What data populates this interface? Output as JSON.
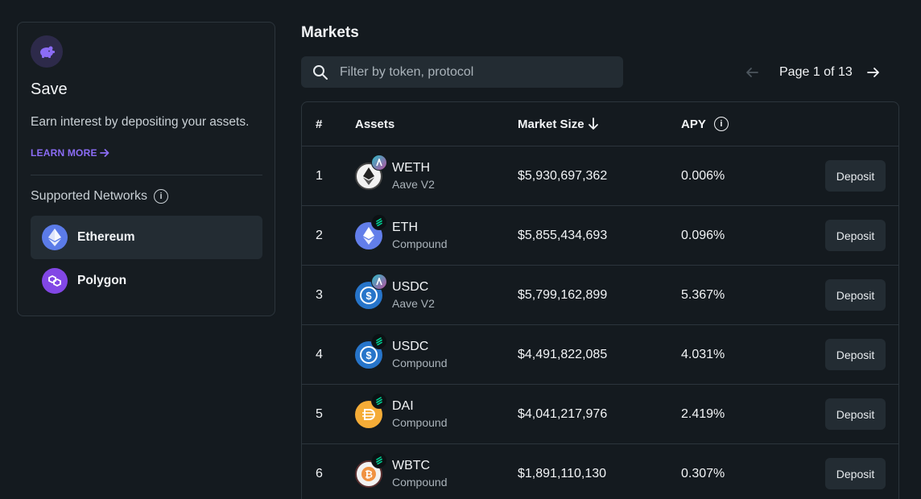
{
  "save": {
    "title": "Save",
    "description": "Earn interest by depositing your assets.",
    "learn_more": "LEARN MORE",
    "networks_label": "Supported Networks",
    "networks": [
      {
        "name": "Ethereum",
        "icon": "ethereum-icon",
        "active": true
      },
      {
        "name": "Polygon",
        "icon": "polygon-icon",
        "active": false
      }
    ]
  },
  "markets": {
    "title": "Markets",
    "search_placeholder": "Filter by token, protocol",
    "page_text": "Page 1 of 13",
    "columns": {
      "index": "#",
      "assets": "Assets",
      "market_size": "Market Size",
      "apy": "APY"
    },
    "rows": [
      {
        "index": "1",
        "symbol": "WETH",
        "protocol": "Aave V2",
        "market_size": "$5,930,697,362",
        "apy": "0.006%",
        "action": "Deposit",
        "token_icon": "weth-icon",
        "protocol_icon": "aave-icon"
      },
      {
        "index": "2",
        "symbol": "ETH",
        "protocol": "Compound",
        "market_size": "$5,855,434,693",
        "apy": "0.096%",
        "action": "Deposit",
        "token_icon": "eth-icon",
        "protocol_icon": "compound-icon"
      },
      {
        "index": "3",
        "symbol": "USDC",
        "protocol": "Aave V2",
        "market_size": "$5,799,162,899",
        "apy": "5.367%",
        "action": "Deposit",
        "token_icon": "usdc-icon",
        "protocol_icon": "aave-icon"
      },
      {
        "index": "4",
        "symbol": "USDC",
        "protocol": "Compound",
        "market_size": "$4,491,822,085",
        "apy": "4.031%",
        "action": "Deposit",
        "token_icon": "usdc-icon",
        "protocol_icon": "compound-icon"
      },
      {
        "index": "5",
        "symbol": "DAI",
        "protocol": "Compound",
        "market_size": "$4,041,217,976",
        "apy": "2.419%",
        "action": "Deposit",
        "token_icon": "dai-icon",
        "protocol_icon": "compound-icon"
      },
      {
        "index": "6",
        "symbol": "WBTC",
        "protocol": "Compound",
        "market_size": "$1,891,110,130",
        "apy": "0.307%",
        "action": "Deposit",
        "token_icon": "wbtc-icon",
        "protocol_icon": "compound-icon"
      }
    ]
  },
  "colors": {
    "background": "#141a1f",
    "surface": "#232c33",
    "border": "#2c353c",
    "accent": "#8b6cf5"
  }
}
